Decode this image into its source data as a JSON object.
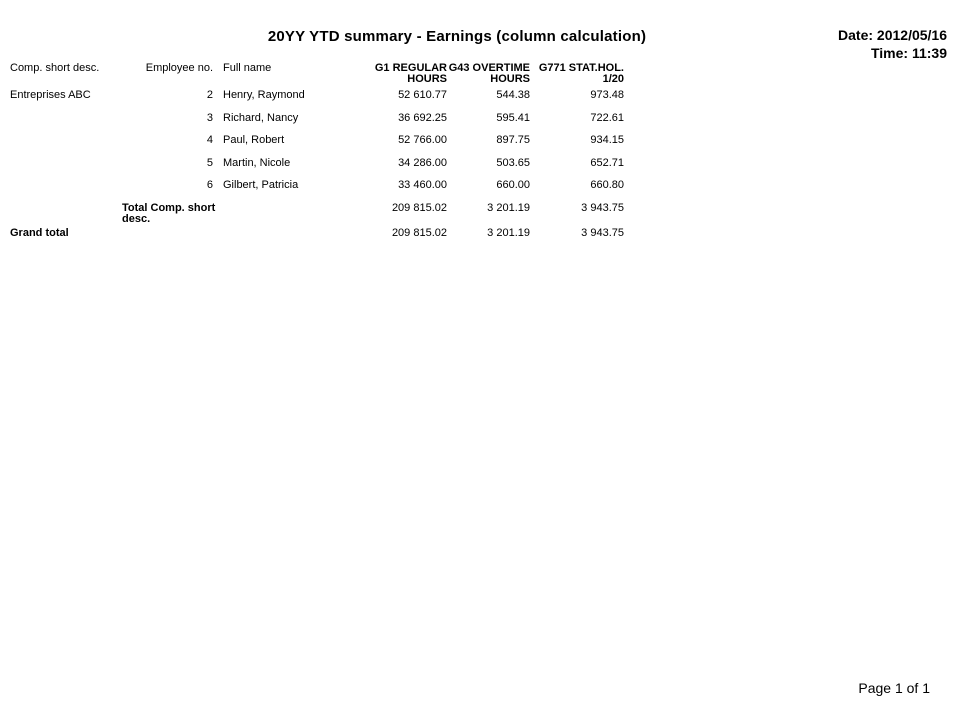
{
  "report": {
    "title": "20YY YTD summary - Earnings (column calculation)",
    "date": "Date: 2012/05/16",
    "time": "Time: 11:39",
    "page": "Page 1 of 1"
  },
  "table": {
    "headers": {
      "comp_short_desc": "Comp. short desc.",
      "employee_no": "Employee no.",
      "full_name": "Full name",
      "g1_line1": "G1 REGULAR",
      "g1_line2": "HOURS",
      "g43_line1": "G43 OVERTIME",
      "g43_line2": "HOURS",
      "g771_line1": "G771 STAT.HOL.",
      "g771_line2": "1/20"
    },
    "rows": [
      {
        "company": "Entreprises ABC",
        "employee_no": "2",
        "full_name": "Henry, Raymond",
        "g1_regular_hours": "52 610.77",
        "g43_overtime_hours": "544.38",
        "g771_stat_hol": "973.48"
      },
      {
        "company": "",
        "employee_no": "3",
        "full_name": "Richard, Nancy",
        "g1_regular_hours": "36 692.25",
        "g43_overtime_hours": "595.41",
        "g771_stat_hol": "722.61"
      },
      {
        "company": "",
        "employee_no": "4",
        "full_name": "Paul, Robert",
        "g1_regular_hours": "52 766.00",
        "g43_overtime_hours": "897.75",
        "g771_stat_hol": "934.15"
      },
      {
        "company": "",
        "employee_no": "5",
        "full_name": "Martin, Nicole",
        "g1_regular_hours": "34 286.00",
        "g43_overtime_hours": "503.65",
        "g771_stat_hol": "652.71"
      },
      {
        "company": "",
        "employee_no": "6",
        "full_name": "Gilbert, Patricia",
        "g1_regular_hours": "33 460.00",
        "g43_overtime_hours": "660.00",
        "g771_stat_hol": "660.80"
      }
    ],
    "total_row": {
      "label": "Total Comp. short desc.",
      "g1_regular_hours": "209 815.02",
      "g43_overtime_hours": "3 201.19",
      "g771_stat_hol": "3 943.75"
    },
    "grand_total_row": {
      "label": "Grand total",
      "g1_regular_hours": "209 815.02",
      "g43_overtime_hours": "3 201.19",
      "g771_stat_hol": "3 943.75"
    }
  }
}
